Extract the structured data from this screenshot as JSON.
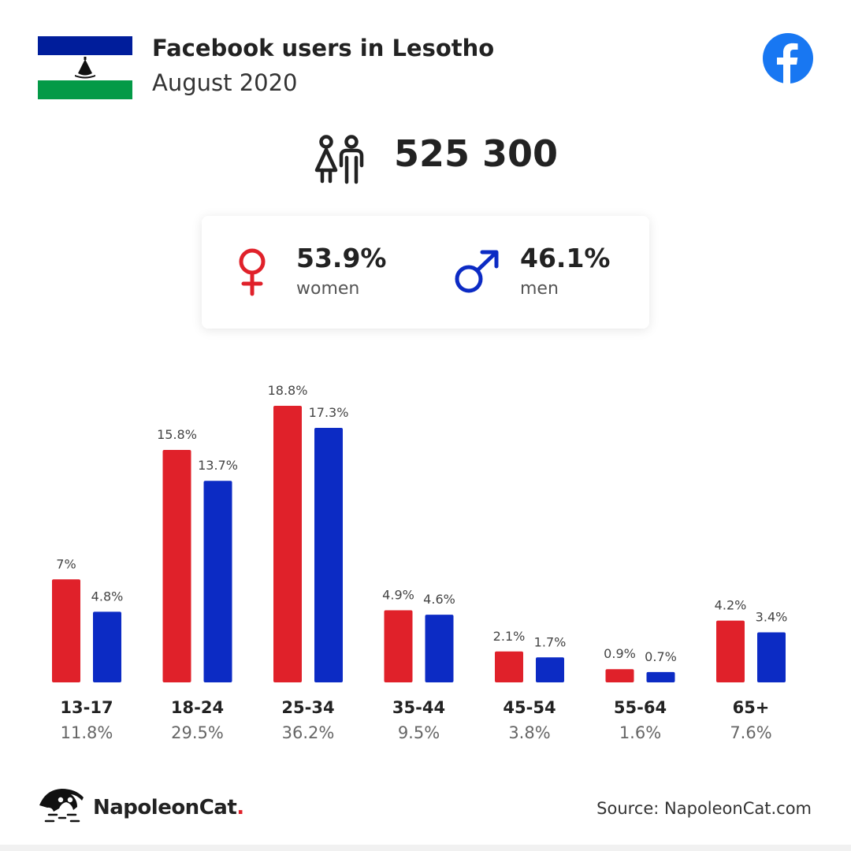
{
  "header": {
    "title": "Facebook users in Lesotho",
    "subtitle": "August 2020",
    "flag_icon": "lesotho-flag",
    "platform_icon": "facebook-logo-icon"
  },
  "summary": {
    "total": "525 300",
    "women_pct": "53.9%",
    "women_label": "women",
    "men_pct": "46.1%",
    "men_label": "men"
  },
  "colors": {
    "women": "#e0212a",
    "men": "#0c2bc4",
    "flag_blue": "#001d9b",
    "flag_green": "#049a47",
    "facebook": "#1877f2"
  },
  "chart_data": {
    "type": "bar",
    "categories": [
      "13-17",
      "18-24",
      "25-34",
      "35-44",
      "45-54",
      "55-64",
      "65+"
    ],
    "category_totals": [
      "11.8%",
      "29.5%",
      "36.2%",
      "9.5%",
      "3.8%",
      "1.6%",
      "7.6%"
    ],
    "series": [
      {
        "values": [
          7,
          15.8,
          18.8,
          4.9,
          2.1,
          0.9,
          4.2
        ],
        "labels": [
          "7%",
          "15.8%",
          "18.8%",
          "4.9%",
          "2.1%",
          "0.9%",
          "4.2%"
        ]
      },
      {
        "values": [
          4.8,
          13.7,
          17.3,
          4.6,
          1.7,
          0.7,
          3.4
        ],
        "labels": [
          "4.8%",
          "13.7%",
          "17.3%",
          "4.6%",
          "1.7%",
          "0.7%",
          "3.4%"
        ]
      }
    ],
    "title": "",
    "xlabel": "",
    "ylabel": "",
    "ylim": [
      0,
      18.8
    ],
    "grid": false
  },
  "footer": {
    "brand_name": "NapoleonCat",
    "brand_dot": ".",
    "source": "Source: NapoleonCat.com"
  }
}
